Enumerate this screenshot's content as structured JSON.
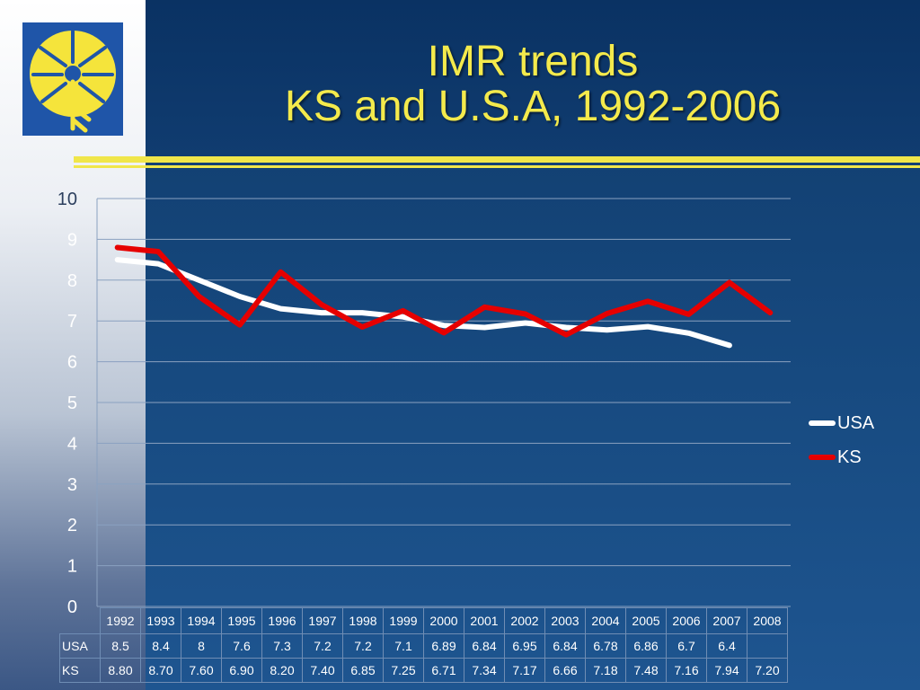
{
  "slide": {
    "title_line1": "IMR trends",
    "title_line2": "KS and U.S.A, 1992-2006"
  },
  "colors": {
    "title": "#f4ea4c",
    "usa_line": "#ffffff",
    "ks_line": "#e60000",
    "rule": "#f0e64a"
  },
  "chart_data": {
    "type": "line",
    "title": "",
    "xlabel": "",
    "ylabel": "",
    "ylim": [
      0,
      10
    ],
    "y_ticks": [
      "0",
      "1",
      "2",
      "3",
      "4",
      "5",
      "6",
      "7",
      "8",
      "9",
      "10"
    ],
    "grid": true,
    "legend_position": "right",
    "categories": [
      "1992",
      "1993",
      "1994",
      "1995",
      "1996",
      "1997",
      "1998",
      "1999",
      "2000",
      "2001",
      "2002",
      "2003",
      "2004",
      "2005",
      "2006",
      "2007",
      "2008"
    ],
    "series": [
      {
        "name": "USA",
        "color": "#ffffff",
        "values": [
          8.5,
          8.4,
          8,
          7.6,
          7.3,
          7.2,
          7.2,
          7.1,
          6.89,
          6.84,
          6.95,
          6.84,
          6.78,
          6.86,
          6.7,
          6.4,
          null
        ],
        "labels": [
          "8.5",
          "8.4",
          "8",
          "7.6",
          "7.3",
          "7.2",
          "7.2",
          "7.1",
          "6.89",
          "6.84",
          "6.95",
          "6.84",
          "6.78",
          "6.86",
          "6.7",
          "6.4",
          ""
        ]
      },
      {
        "name": "KS",
        "color": "#e60000",
        "values": [
          8.8,
          8.7,
          7.6,
          6.9,
          8.2,
          7.4,
          6.85,
          7.25,
          6.71,
          7.34,
          7.17,
          6.66,
          7.18,
          7.48,
          7.16,
          7.94,
          7.2
        ],
        "labels": [
          "8.80",
          "8.70",
          "7.60",
          "6.90",
          "8.20",
          "7.40",
          "6.85",
          "7.25",
          "6.71",
          "7.34",
          "7.17",
          "6.66",
          "7.18",
          "7.48",
          "7.16",
          "7.94",
          "7.20"
        ]
      }
    ]
  }
}
